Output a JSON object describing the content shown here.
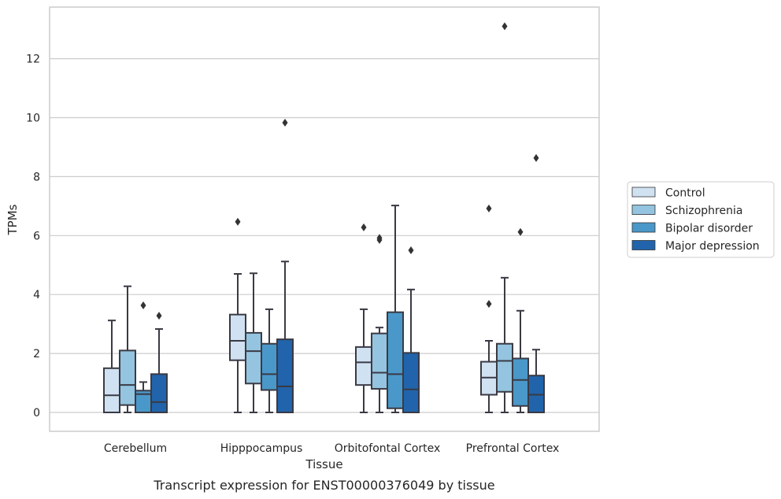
{
  "chart_data": {
    "type": "boxplot",
    "title": "",
    "caption": "Transcript expression for ENST00000376049 by tissue",
    "xlabel": "Tissue",
    "ylabel": "TPMs",
    "ylim": [
      -0.62,
      13.8
    ],
    "yticks": [
      0,
      2,
      4,
      6,
      8,
      10,
      12
    ],
    "grid": "horizontal",
    "legend_position": "right",
    "categories": [
      "Cerebellum",
      "Hipppocampus",
      "Orbitofontal Cortex",
      "Prefrontal Cortex"
    ],
    "series": [
      {
        "name": "Control",
        "color": "#d0e1f2",
        "boxes": [
          {
            "min": 0.0,
            "q1": 0.0,
            "median": 0.58,
            "q3": 1.5,
            "max": 3.12,
            "outliers": []
          },
          {
            "min": 0.0,
            "q1": 1.77,
            "median": 2.43,
            "q3": 3.32,
            "max": 4.7,
            "outliers": [
              6.47
            ]
          },
          {
            "min": 0.0,
            "q1": 0.93,
            "median": 1.7,
            "q3": 2.22,
            "max": 3.5,
            "outliers": [
              6.28
            ]
          },
          {
            "min": 0.0,
            "q1": 0.6,
            "median": 1.18,
            "q3": 1.72,
            "max": 2.43,
            "outliers": [
              3.68,
              6.92
            ]
          }
        ]
      },
      {
        "name": "Schizophrenia",
        "color": "#94c4df",
        "boxes": [
          {
            "min": 0.0,
            "q1": 0.25,
            "median": 0.93,
            "q3": 2.1,
            "max": 4.28,
            "outliers": []
          },
          {
            "min": 0.0,
            "q1": 0.98,
            "median": 2.08,
            "q3": 2.7,
            "max": 4.72,
            "outliers": []
          },
          {
            "min": 0.0,
            "q1": 0.8,
            "median": 1.35,
            "q3": 2.68,
            "max": 2.88,
            "outliers": [
              5.85,
              5.92
            ]
          },
          {
            "min": 0.0,
            "q1": 0.7,
            "median": 1.75,
            "q3": 2.33,
            "max": 4.57,
            "outliers": [
              13.1
            ]
          }
        ]
      },
      {
        "name": "Bipolar disorder",
        "color": "#4a98c9",
        "boxes": [
          {
            "min": 0.0,
            "q1": 0.0,
            "median": 0.62,
            "q3": 0.74,
            "max": 1.03,
            "outliers": [
              3.63
            ]
          },
          {
            "min": 0.0,
            "q1": 0.76,
            "median": 1.3,
            "q3": 2.33,
            "max": 3.5,
            "outliers": []
          },
          {
            "min": 0.0,
            "q1": 0.14,
            "median": 1.3,
            "q3": 3.4,
            "max": 7.02,
            "outliers": []
          },
          {
            "min": 0.0,
            "q1": 0.22,
            "median": 1.1,
            "q3": 1.83,
            "max": 3.45,
            "outliers": [
              6.12
            ]
          }
        ]
      },
      {
        "name": "Major depression",
        "color": "#2164ab",
        "boxes": [
          {
            "min": 0.0,
            "q1": 0.0,
            "median": 0.35,
            "q3": 1.3,
            "max": 2.83,
            "outliers": [
              3.28
            ]
          },
          {
            "min": 0.0,
            "q1": 0.0,
            "median": 0.88,
            "q3": 2.48,
            "max": 5.12,
            "outliers": [
              9.83
            ]
          },
          {
            "min": 0.0,
            "q1": 0.0,
            "median": 0.78,
            "q3": 2.02,
            "max": 4.17,
            "outliers": [
              5.5
            ]
          },
          {
            "min": 0.0,
            "q1": 0.0,
            "median": 0.6,
            "q3": 1.25,
            "max": 2.13,
            "outliers": [
              8.63
            ]
          }
        ]
      }
    ]
  }
}
